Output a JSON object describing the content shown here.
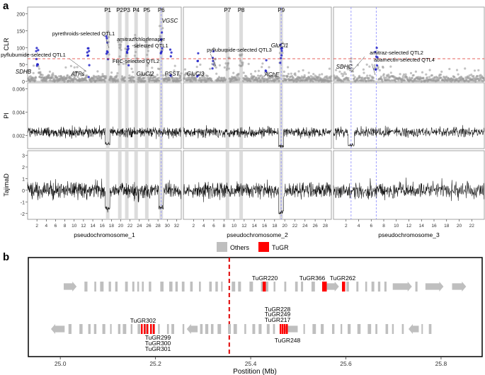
{
  "chart_data": [
    {
      "panel": "a",
      "type": "line",
      "tracks": [
        {
          "name": "CLR",
          "yticks": [
            "0",
            "50",
            "100",
            "150",
            "200"
          ],
          "threshold": 67,
          "threshold_color": "#e0302a",
          "point_color": "#9a9a9a",
          "highlight_color": "#2323c8"
        },
        {
          "name": "PI",
          "yticks": [
            "0.002",
            "0.004",
            "0.006"
          ]
        },
        {
          "name": "TajimaD",
          "yticks": [
            "-2",
            "-1",
            "0",
            "1",
            "2",
            "3"
          ]
        }
      ],
      "chromosomes": [
        {
          "name": "pseudochromosome_1",
          "xticks": [
            "2",
            "4",
            "6",
            "8",
            "10",
            "12",
            "14",
            "16",
            "18",
            "20",
            "22",
            "24",
            "26",
            "28",
            "30",
            "32"
          ]
        },
        {
          "name": "pseudochromosome_2",
          "xticks": [
            "2",
            "4",
            "6",
            "8",
            "10",
            "12",
            "14",
            "16",
            "18",
            "20",
            "22",
            "24",
            "26",
            "28"
          ]
        },
        {
          "name": "pseudochromosome_3",
          "xticks": [
            "2",
            "4",
            "6",
            "8",
            "10",
            "12",
            "14",
            "16",
            "18",
            "20",
            "22"
          ]
        }
      ],
      "peaks": [
        {
          "label": "P1",
          "chromosome": 1,
          "mb": 17.2
        },
        {
          "label": "P2",
          "chromosome": 1,
          "mb": 19.8
        },
        {
          "label": "P3",
          "chromosome": 1,
          "mb": 21.3
        },
        {
          "label": "P4",
          "chromosome": 1,
          "mb": 23.3
        },
        {
          "label": "P5",
          "chromosome": 1,
          "mb": 25.6
        },
        {
          "label": "P6",
          "chromosome": 1,
          "mb": 28.7
        },
        {
          "label": "P7",
          "chromosome": 2,
          "mb": 8.7
        },
        {
          "label": "P8",
          "chromosome": 2,
          "mb": 11.4
        },
        {
          "label": "P9",
          "chromosome": 2,
          "mb": 19.3
        }
      ],
      "annotations": [
        {
          "text": "pyrethroids-selected QTL1",
          "chromosome": 1
        },
        {
          "text": "pyflubumide-selected QTL1",
          "chromosome": 1
        },
        {
          "text": "amitraz/chlorfenapyr",
          "chromosome": 1
        },
        {
          "text": "-selected QTL1",
          "chromosome": 1
        },
        {
          "text": "FBC-selected QTL2",
          "chromosome": 1
        },
        {
          "text": "pyflubumide-selected QTL3",
          "chromosome": 2
        },
        {
          "text": "amitraz-selected QTL2",
          "chromosome": 3
        },
        {
          "text": "abamectin-selected QTL4",
          "chromosome": 3
        }
      ],
      "genes": [
        {
          "text": "SDHB",
          "chromosome": 1,
          "mb": 2.5
        },
        {
          "text": "ATPs",
          "chromosome": 1,
          "mb": 11.2
        },
        {
          "text": "GluCl2",
          "chromosome": 1,
          "mb": 21.5
        },
        {
          "text": "VGSC",
          "chromosome": 1,
          "mb": 28.7
        },
        {
          "text": "PSST",
          "chromosome": 1,
          "mb": 29.7
        },
        {
          "text": "GluCl3",
          "chromosome": 2,
          "mb": 2.7
        },
        {
          "text": "GluCl1",
          "chromosome": 2,
          "mb": 19.3
        },
        {
          "text": "AChE",
          "chromosome": 2,
          "mb": 16.0
        },
        {
          "text": "SDHC",
          "chromosome": 3,
          "mb": 2.8
        }
      ]
    },
    {
      "panel": "b",
      "type": "gene-track",
      "legend": [
        {
          "name": "Others",
          "color": "#bfbfbf"
        },
        {
          "name": "TuGR",
          "color": "#ff0000"
        }
      ],
      "xlabel": "Postition (Mb)",
      "xticks": [
        "25.0",
        "25.2",
        "25.4",
        "25.6",
        "25.8"
      ],
      "xlim": [
        24.97,
        25.87
      ],
      "dashed_line_mb": 25.355,
      "tugr_labels": [
        {
          "text": "TuGR220",
          "mb": 25.415,
          "strand": "top"
        },
        {
          "text": "TuGR366",
          "mb": 25.515,
          "strand": "top"
        },
        {
          "text": "TuGR262",
          "mb": 25.572,
          "strand": "top"
        },
        {
          "text": "TuGR228",
          "mb": 25.432,
          "strand": "bottom-above"
        },
        {
          "text": "TuGR249",
          "mb": 25.432,
          "strand": "bottom-above"
        },
        {
          "text": "TuGR217",
          "mb": 25.432,
          "strand": "bottom-above"
        },
        {
          "text": "TuGR248",
          "mb": 25.432,
          "strand": "bottom-below"
        },
        {
          "text": "TuGR302",
          "mb": 25.165,
          "strand": "bottom-above"
        },
        {
          "text": "TuGR299",
          "mb": 25.172,
          "strand": "bottom-below"
        },
        {
          "text": "TuGR300",
          "mb": 25.172,
          "strand": "bottom-below"
        },
        {
          "text": "TuGR301",
          "mb": 25.172,
          "strand": "bottom-below"
        }
      ]
    }
  ]
}
